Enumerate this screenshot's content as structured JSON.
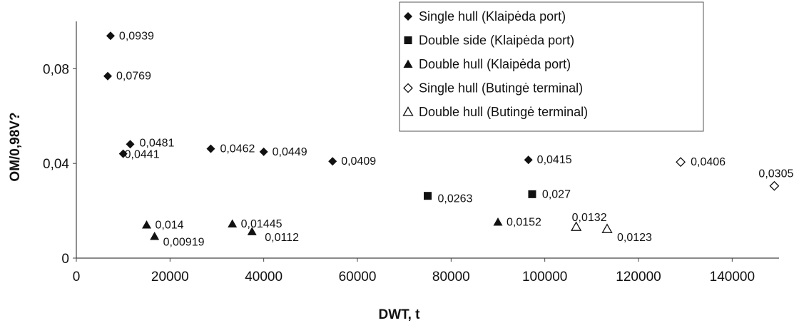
{
  "chart_data": {
    "type": "scatter",
    "xlabel": "DWT, t",
    "ylabel": "OM/0,98V?",
    "xlim": [
      0,
      150000
    ],
    "ylim": [
      0,
      0.1
    ],
    "x_ticks": [
      0,
      20000,
      40000,
      60000,
      80000,
      100000,
      120000,
      140000
    ],
    "x_tick_labels": [
      "0",
      "20000",
      "40000",
      "60000",
      "80000",
      "100000",
      "120000",
      "140000"
    ],
    "y_ticks": [
      0,
      0.04,
      0.08
    ],
    "y_tick_labels": [
      "0",
      "0,04",
      "0,08"
    ],
    "grid": false,
    "legend_position": "top-right",
    "series": [
      {
        "name": "Single hull (Klaipėda port)",
        "marker": "filled-diamond",
        "points": [
          {
            "x": 7300,
            "y": 0.0939,
            "label": "0,0939"
          },
          {
            "x": 6700,
            "y": 0.0769,
            "label": "0,0769"
          },
          {
            "x": 11500,
            "y": 0.0481,
            "label": "0,0481"
          },
          {
            "x": 10000,
            "y": 0.0441,
            "label": "0,0441"
          },
          {
            "x": 28700,
            "y": 0.0462,
            "label": "0,0462"
          },
          {
            "x": 40000,
            "y": 0.0449,
            "label": "0,0449"
          },
          {
            "x": 54700,
            "y": 0.0409,
            "label": "0,0409"
          },
          {
            "x": 96500,
            "y": 0.0415,
            "label": "0,0415"
          }
        ]
      },
      {
        "name": "Double side (Klaipėda port)",
        "marker": "filled-square",
        "points": [
          {
            "x": 75000,
            "y": 0.0263,
            "label": "0,0263"
          },
          {
            "x": 97300,
            "y": 0.027,
            "label": "0,027"
          }
        ]
      },
      {
        "name": "Double hull (Klaipėda port)",
        "marker": "filled-triangle",
        "points": [
          {
            "x": 15000,
            "y": 0.014,
            "label": "0,014"
          },
          {
            "x": 16700,
            "y": 0.00919,
            "label": "0,00919"
          },
          {
            "x": 33300,
            "y": 0.01445,
            "label": "0,01445"
          },
          {
            "x": 37500,
            "y": 0.0112,
            "label": "0,0112"
          },
          {
            "x": 90000,
            "y": 0.0152,
            "label": "0,0152"
          }
        ]
      },
      {
        "name": "Single hull (Butingė terminal)",
        "marker": "open-diamond",
        "points": [
          {
            "x": 129000,
            "y": 0.0406,
            "label": "0,0406"
          },
          {
            "x": 149000,
            "y": 0.0305,
            "label": "0,0305"
          }
        ]
      },
      {
        "name": "Double hull (Butingė terminal)",
        "marker": "open-triangle",
        "points": [
          {
            "x": 106700,
            "y": 0.0132,
            "label": "0,0132"
          },
          {
            "x": 113300,
            "y": 0.0123,
            "label": "0,0123"
          }
        ]
      }
    ]
  }
}
